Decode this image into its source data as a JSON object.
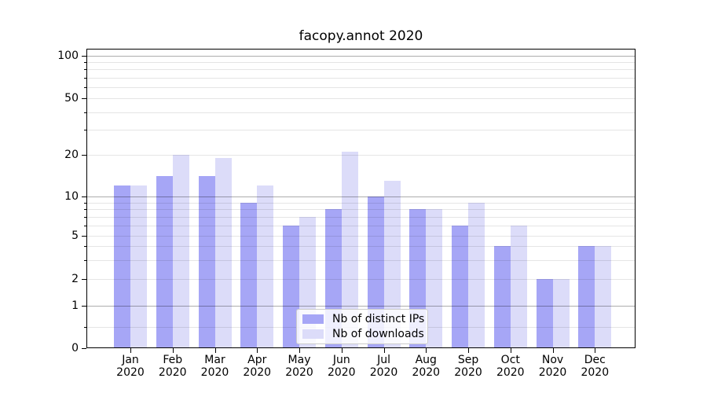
{
  "title": "facopy.annot 2020",
  "chart_data": {
    "type": "bar",
    "title": "facopy.annot 2020",
    "categories": [
      "Jan",
      "Feb",
      "Mar",
      "Apr",
      "May",
      "Jun",
      "Jul",
      "Aug",
      "Sep",
      "Oct",
      "Nov",
      "Dec"
    ],
    "year_label": "2020",
    "series": [
      {
        "name": "Nb of distinct IPs",
        "color": "#a6a6f6",
        "values": [
          12,
          14,
          14,
          9,
          6,
          8,
          10,
          8,
          6,
          4,
          2,
          4
        ]
      },
      {
        "name": "Nb of downloads",
        "color": "#dcdcf9",
        "values": [
          12,
          20,
          19,
          12,
          7,
          21,
          13,
          8,
          9,
          6,
          2,
          4
        ]
      }
    ],
    "xlabel": "",
    "ylabel": "",
    "yscale": "symlog",
    "ylim": [
      0,
      120
    ],
    "y_ticks": [
      100,
      50,
      20,
      10,
      5,
      2,
      1,
      0
    ],
    "y_tick_labels": [
      "100",
      "50",
      "20",
      "10",
      "5",
      "2",
      "1",
      "0"
    ],
    "y_major_gridlines": [
      1,
      10,
      100
    ],
    "y_minor_gridlines": [
      0.5,
      2,
      3,
      4,
      5,
      6,
      7,
      8,
      9,
      20,
      30,
      40,
      50,
      60,
      70,
      80,
      90
    ],
    "grid": true,
    "legend_position": "lower center"
  },
  "colors": {
    "bar_distinct_ips": "#a6a6f6",
    "bar_downloads": "#dcdcf9",
    "major_grid": "#b3b3b3",
    "minor_grid": "#e6e6e6",
    "axis": "#000000",
    "background": "#ffffff"
  }
}
